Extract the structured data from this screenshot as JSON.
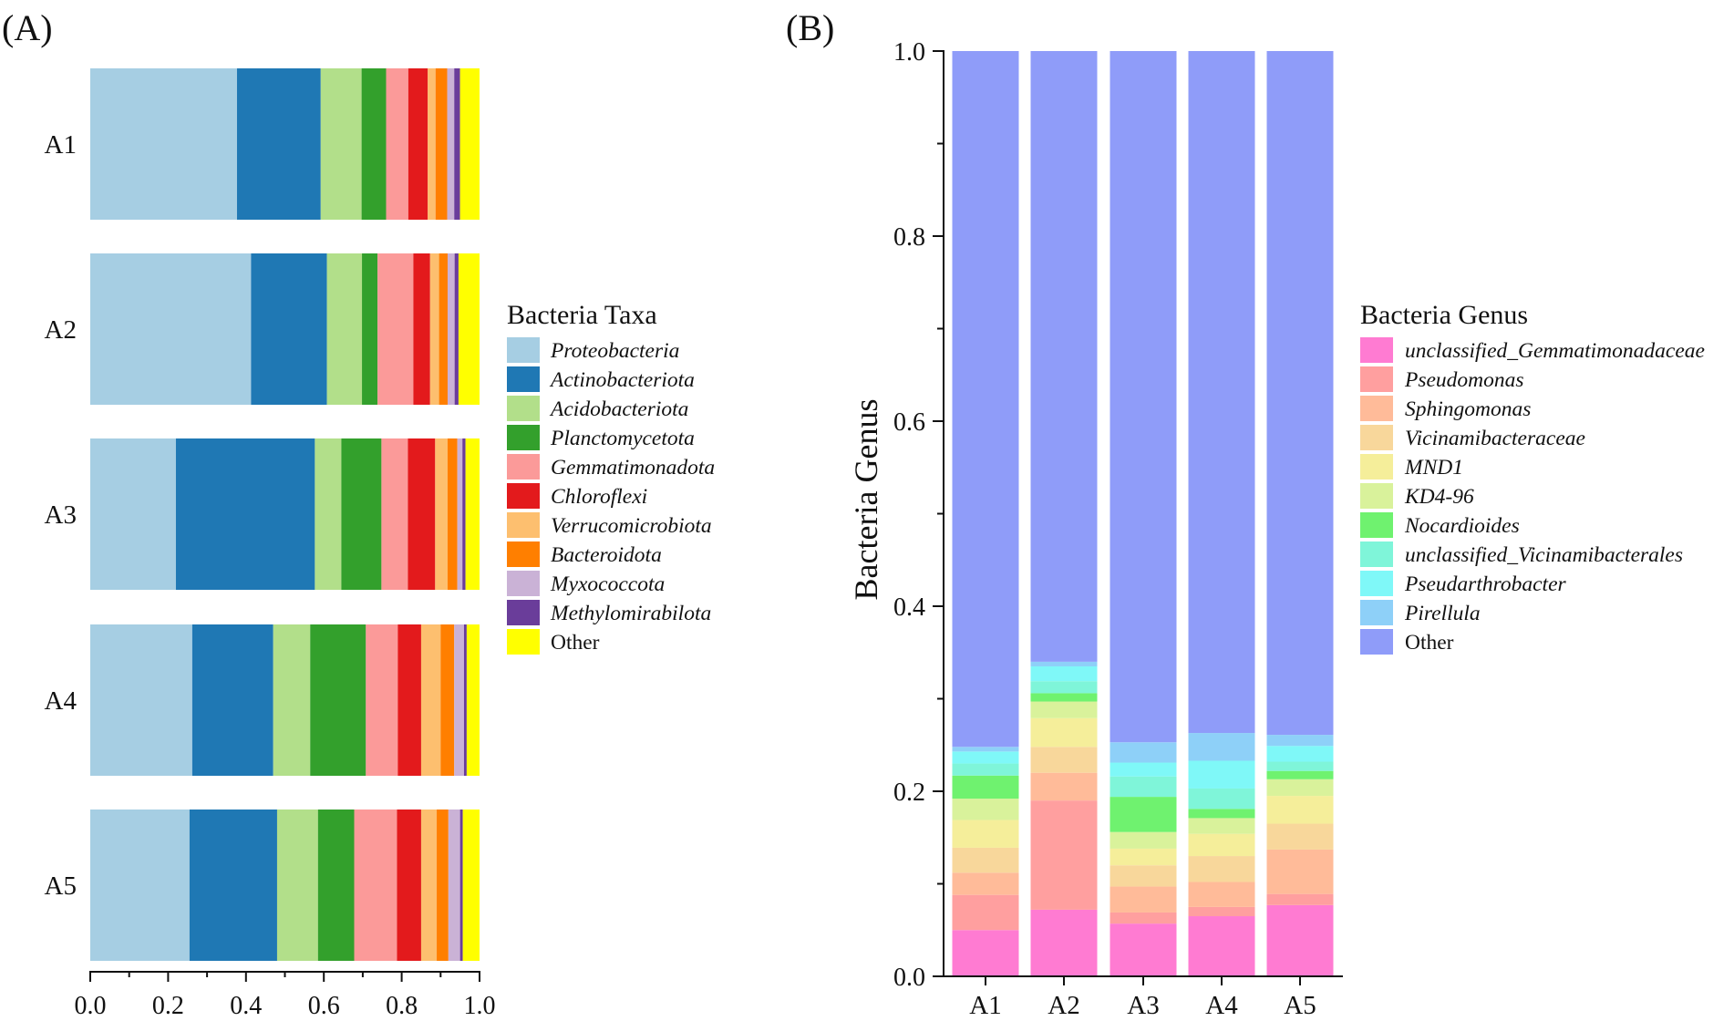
{
  "chart_data": [
    {
      "panel": "(A)",
      "type": "bar",
      "orientation": "horizontal",
      "stacked": true,
      "title": "",
      "xlabel": "",
      "ylabel": "",
      "xlim": [
        0,
        1.0
      ],
      "xticks": [
        "0.0",
        "0.2",
        "0.4",
        "0.6",
        "0.8",
        "1.0"
      ],
      "categories": [
        "A1",
        "A2",
        "A3",
        "A4",
        "A5"
      ],
      "legend_title": "Bacteria Taxa",
      "legend_position": "right",
      "series": [
        {
          "name": "Proteobacteria",
          "italic": true,
          "color": "#a6cee3",
          "values": [
            0.377,
            0.413,
            0.22,
            0.262,
            0.255
          ]
        },
        {
          "name": "Actinobacteriota",
          "italic": true,
          "color": "#1f78b4",
          "values": [
            0.215,
            0.195,
            0.357,
            0.208,
            0.225
          ]
        },
        {
          "name": "Acidobacteriota",
          "italic": true,
          "color": "#b2df8a",
          "values": [
            0.105,
            0.09,
            0.068,
            0.095,
            0.105
          ]
        },
        {
          "name": "Planctomycetota",
          "italic": true,
          "color": "#33a02c",
          "values": [
            0.063,
            0.04,
            0.103,
            0.143,
            0.093
          ]
        },
        {
          "name": "Gemmatimonadota",
          "italic": true,
          "color": "#fb9a99",
          "values": [
            0.057,
            0.092,
            0.068,
            0.082,
            0.11
          ]
        },
        {
          "name": "Chloroflexi",
          "italic": true,
          "color": "#e31a1c",
          "values": [
            0.05,
            0.043,
            0.07,
            0.06,
            0.062
          ]
        },
        {
          "name": "Verrucomicrobiota",
          "italic": true,
          "color": "#fdbf6f",
          "values": [
            0.02,
            0.023,
            0.032,
            0.05,
            0.04
          ]
        },
        {
          "name": "Bacteroidota",
          "italic": true,
          "color": "#ff7f00",
          "values": [
            0.03,
            0.022,
            0.025,
            0.035,
            0.03
          ]
        },
        {
          "name": "Myxococcota",
          "italic": true,
          "color": "#cab2d6",
          "values": [
            0.018,
            0.018,
            0.013,
            0.025,
            0.03
          ]
        },
        {
          "name": "Methylomirabilota",
          "italic": true,
          "color": "#6a3d9a",
          "values": [
            0.015,
            0.01,
            0.008,
            0.007,
            0.007
          ]
        },
        {
          "name": "Other",
          "italic": false,
          "color": "#ffff00",
          "values": [
            0.05,
            0.054,
            0.036,
            0.033,
            0.043
          ]
        }
      ]
    },
    {
      "panel": "(B)",
      "type": "bar",
      "orientation": "vertical",
      "stacked": true,
      "title": "",
      "xlabel": "",
      "ylabel": "Bacteria Genus",
      "ylim": [
        0,
        1.0
      ],
      "yticks": [
        "0.0",
        "0.2",
        "0.4",
        "0.6",
        "0.8",
        "1.0"
      ],
      "categories": [
        "A1",
        "A2",
        "A3",
        "A4",
        "A5"
      ],
      "legend_title": "Bacteria Genus",
      "legend_position": "right",
      "series": [
        {
          "name": "unclassified_Gemmatimonadaceae",
          "italic": true,
          "color": "#ff7bd2",
          "values": [
            0.05,
            0.072,
            0.057,
            0.065,
            0.077
          ]
        },
        {
          "name": "Pseudomonas",
          "italic": true,
          "color": "#ff9f9f",
          "values": [
            0.038,
            0.118,
            0.012,
            0.01,
            0.012
          ]
        },
        {
          "name": "Sphingomonas",
          "italic": true,
          "color": "#ffbb99",
          "values": [
            0.024,
            0.03,
            0.028,
            0.027,
            0.048
          ]
        },
        {
          "name": "Vicinamibacteraceae",
          "italic": true,
          "color": "#f8d79b",
          "values": [
            0.027,
            0.028,
            0.023,
            0.028,
            0.028
          ]
        },
        {
          "name": "MND1",
          "italic": true,
          "color": "#f5ee9a",
          "values": [
            0.03,
            0.031,
            0.018,
            0.024,
            0.03
          ]
        },
        {
          "name": "KD4-96",
          "italic": true,
          "color": "#d9f29b",
          "values": [
            0.023,
            0.018,
            0.018,
            0.017,
            0.018
          ]
        },
        {
          "name": "Nocardioides",
          "italic": true,
          "color": "#6ff26f",
          "values": [
            0.025,
            0.009,
            0.038,
            0.01,
            0.009
          ]
        },
        {
          "name": "unclassified_Vicinamibacterales",
          "italic": true,
          "color": "#7ff5d9",
          "values": [
            0.013,
            0.013,
            0.022,
            0.022,
            0.01
          ]
        },
        {
          "name": "Pseudarthrobacter",
          "italic": true,
          "color": "#7ff8f8",
          "values": [
            0.013,
            0.016,
            0.015,
            0.03,
            0.017
          ]
        },
        {
          "name": "Pirellula",
          "italic": true,
          "color": "#8ed0f8",
          "values": [
            0.005,
            0.005,
            0.022,
            0.03,
            0.012
          ]
        },
        {
          "name": "Other",
          "italic": false,
          "color": "#8f9cf9",
          "values": [
            0.752,
            0.66,
            0.747,
            0.737,
            0.739
          ]
        }
      ]
    }
  ]
}
